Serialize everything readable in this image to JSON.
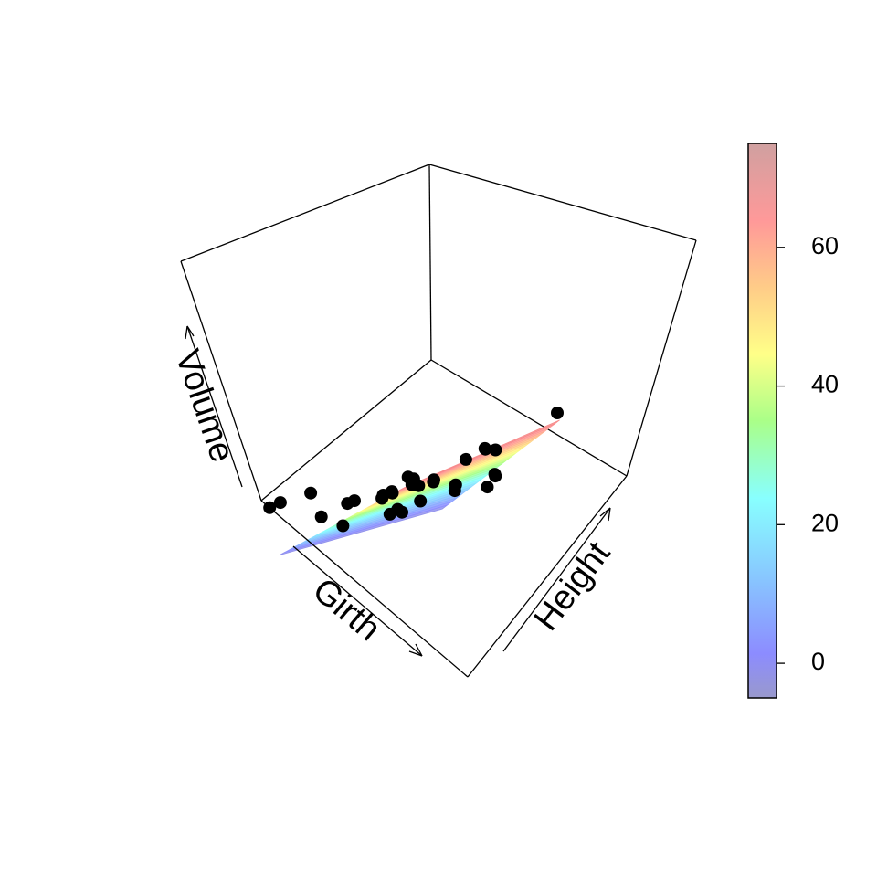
{
  "chart_data": {
    "type": "scatter",
    "subtype": "3d-scatter-with-regression-plane",
    "title": "",
    "xlabel": "Girth",
    "ylabel": "Height",
    "zlabel": "Volume",
    "colorbar": {
      "ticks": [
        "0",
        "20",
        "40",
        "60"
      ],
      "range": [
        -5,
        75
      ],
      "palette": "rainbow (blue to red), semi-transparent"
    },
    "points": [
      {
        "girth": 8.3,
        "height": 70,
        "volume": 10.3
      },
      {
        "girth": 8.6,
        "height": 65,
        "volume": 10.3
      },
      {
        "girth": 8.8,
        "height": 63,
        "volume": 10.2
      },
      {
        "girth": 10.5,
        "height": 72,
        "volume": 16.4
      },
      {
        "girth": 10.7,
        "height": 81,
        "volume": 18.8
      },
      {
        "girth": 10.8,
        "height": 83,
        "volume": 19.7
      },
      {
        "girth": 11.0,
        "height": 66,
        "volume": 15.6
      },
      {
        "girth": 11.0,
        "height": 75,
        "volume": 18.2
      },
      {
        "girth": 11.1,
        "height": 80,
        "volume": 22.6
      },
      {
        "girth": 11.2,
        "height": 75,
        "volume": 19.9
      },
      {
        "girth": 11.3,
        "height": 79,
        "volume": 24.2
      },
      {
        "girth": 11.4,
        "height": 76,
        "volume": 21.0
      },
      {
        "girth": 11.4,
        "height": 76,
        "volume": 21.4
      },
      {
        "girth": 11.7,
        "height": 69,
        "volume": 21.3
      },
      {
        "girth": 12.0,
        "height": 75,
        "volume": 19.1
      },
      {
        "girth": 12.9,
        "height": 74,
        "volume": 22.2
      },
      {
        "girth": 12.9,
        "height": 85,
        "volume": 33.8
      },
      {
        "girth": 13.3,
        "height": 86,
        "volume": 27.4
      },
      {
        "girth": 13.7,
        "height": 71,
        "volume": 25.7
      },
      {
        "girth": 13.8,
        "height": 64,
        "volume": 24.9
      },
      {
        "girth": 14.0,
        "height": 78,
        "volume": 34.5
      },
      {
        "girth": 14.2,
        "height": 80,
        "volume": 31.7
      },
      {
        "girth": 14.5,
        "height": 74,
        "volume": 36.3
      },
      {
        "girth": 16.0,
        "height": 72,
        "volume": 38.3
      },
      {
        "girth": 16.3,
        "height": 77,
        "volume": 42.6
      },
      {
        "girth": 17.3,
        "height": 81,
        "volume": 55.4
      },
      {
        "girth": 17.5,
        "height": 82,
        "volume": 55.7
      },
      {
        "girth": 17.9,
        "height": 80,
        "volume": 58.3
      },
      {
        "girth": 18.0,
        "height": 80,
        "volume": 51.5
      },
      {
        "girth": 18.0,
        "height": 80,
        "volume": 51.0
      },
      {
        "girth": 20.6,
        "height": 87,
        "volume": 77.0
      }
    ],
    "regression_plane": {
      "volume_at_corners": {
        "min_girth_min_height": -5,
        "max_girth_min_height": 63,
        "min_girth_max_height": 1,
        "max_girth_max_height": 75
      }
    }
  }
}
